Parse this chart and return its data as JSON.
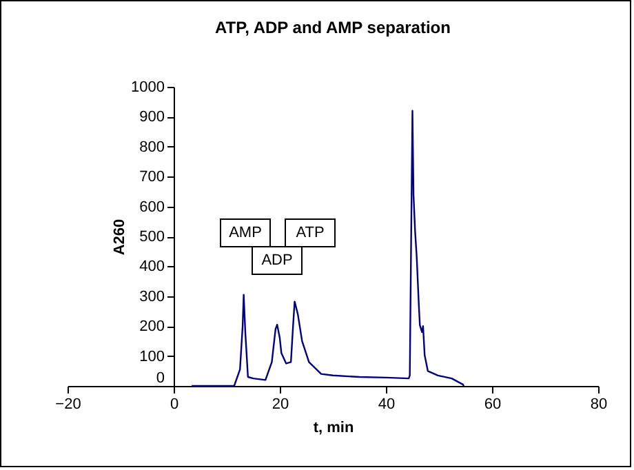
{
  "chart_data": {
    "type": "line",
    "title": "ATP, ADP and AMP separation",
    "xlabel": "t, min",
    "ylabel": "A260",
    "xlim": [
      -20,
      80
    ],
    "xticks": [
      -20,
      0,
      20,
      40,
      60,
      80
    ],
    "ylim": [
      0,
      1000
    ],
    "yticks": [
      0,
      100,
      200,
      300,
      400,
      500,
      600,
      700,
      800,
      900,
      1000
    ],
    "grid": false,
    "legend": false,
    "marker": "none",
    "line_style": "solid",
    "series": [
      {
        "color": "#000080",
        "x": [
          3.4,
          11.4,
          12.5,
          13.0,
          13.2,
          13.5,
          14.0,
          15.0,
          17.3,
          18.5,
          19.2,
          19.5,
          20.0,
          20.3,
          21.2,
          22.1,
          22.5,
          22.8,
          23.4,
          24.2,
          25.5,
          27.8,
          30.0,
          35.0,
          40.0,
          44.3,
          44.5,
          45.0,
          45.2,
          45.5,
          45.8,
          46.2,
          46.4,
          46.8,
          47.0,
          47.3,
          47.9,
          49.8,
          52.4,
          54.5,
          54.7
        ],
        "values": [
          0,
          0,
          55,
          200,
          305,
          180,
          30,
          25,
          20,
          80,
          190,
          205,
          160,
          110,
          75,
          80,
          200,
          282,
          240,
          150,
          80,
          40,
          35,
          30,
          28,
          25,
          35,
          920,
          640,
          517,
          433,
          272,
          203,
          180,
          200,
          103,
          50,
          35,
          25,
          5,
          0
        ]
      }
    ],
    "annotations": [
      "AMP",
      "ADP",
      "ATP"
    ]
  }
}
